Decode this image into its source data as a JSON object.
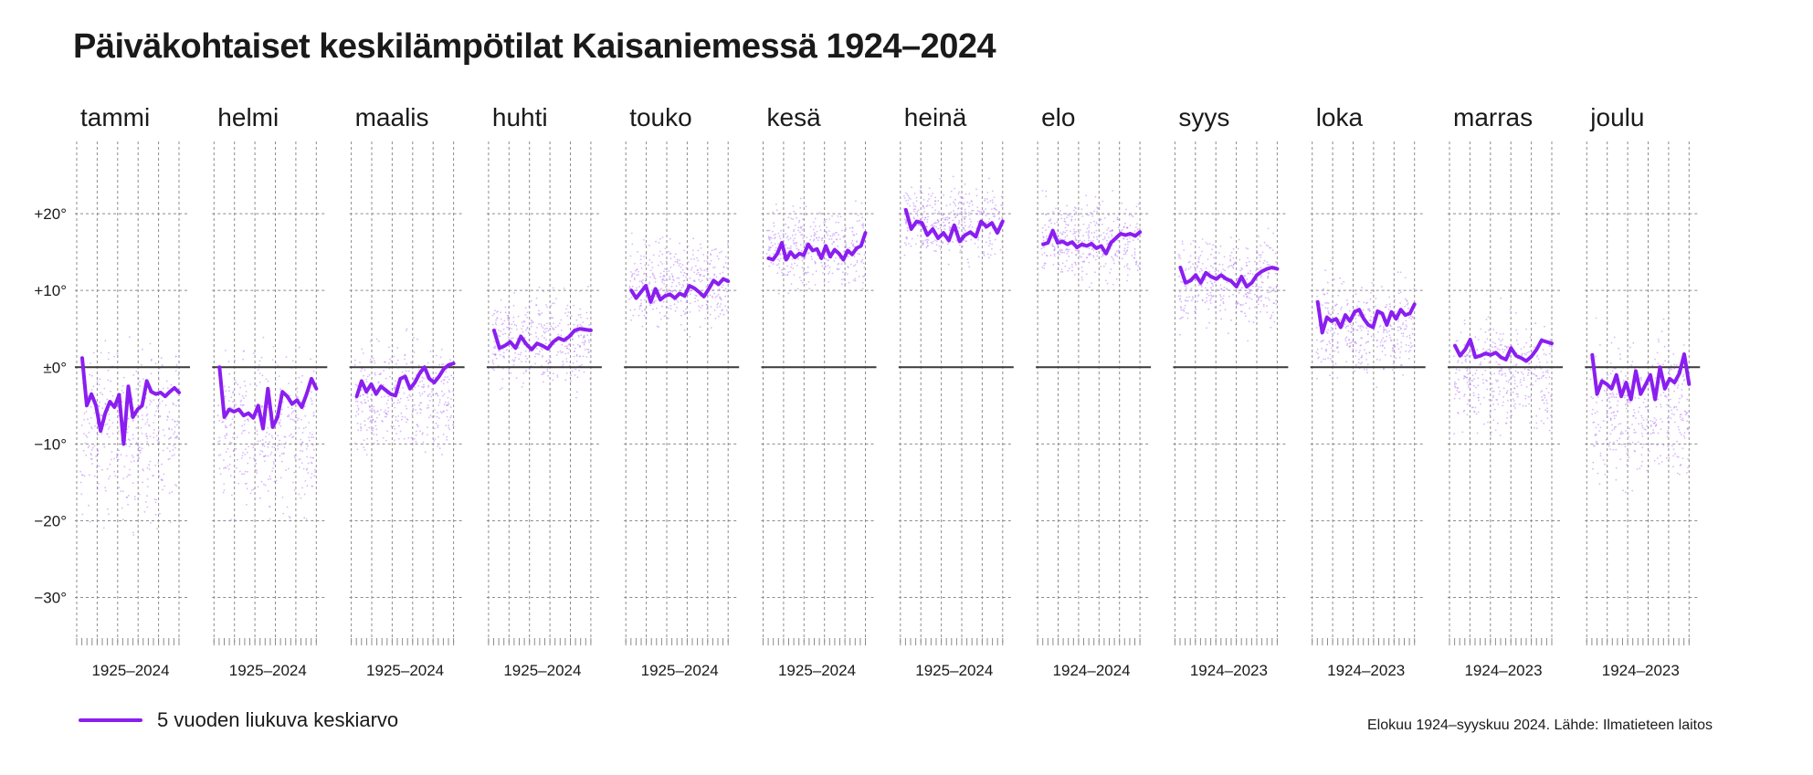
{
  "chart_data": {
    "type": "line",
    "title": "Päiväkohtaiset keskilämpötilat Kaisaniemessä 1924–2024",
    "ylim": [
      -36,
      30
    ],
    "yticks": [
      20,
      10,
      0,
      -10,
      -20,
      -30
    ],
    "ytick_labels": [
      "+20°",
      "+10°",
      "±0°",
      "−10°",
      "−20°",
      "−30°"
    ],
    "zero_line": 0,
    "series_name": "5 vuoden liukuva keskiarvo",
    "source": "Elokuu 1924–syyskuu 2024. Lähde: Ilmatieteen laitos",
    "line_color": "#8a1ef0",
    "dot_color": "#b77ef5",
    "months": [
      {
        "name": "tammi",
        "period": "1925–2024",
        "spread": [
          -22,
          5
        ],
        "avg": [
          1.2,
          -5.0,
          -3.5,
          -5.0,
          -8.3,
          -6.0,
          -4.5,
          -5.2,
          -3.6,
          -10.0,
          -2.5,
          -6.5,
          -5.5,
          -5.0,
          -1.8,
          -3.2,
          -3.5,
          -3.3,
          -3.8,
          -3.2,
          -2.7,
          -3.3
        ]
      },
      {
        "name": "helmi",
        "period": "1925–2024",
        "spread": [
          -22,
          4
        ],
        "avg": [
          0.0,
          -6.5,
          -5.5,
          -5.8,
          -5.5,
          -6.3,
          -6.0,
          -6.6,
          -5.0,
          -8.0,
          -2.8,
          -7.8,
          -6.5,
          -3.2,
          -3.8,
          -4.8,
          -4.3,
          -5.2,
          -3.5,
          -1.5,
          -2.8
        ]
      },
      {
        "name": "maalis",
        "period": "1925–2024",
        "spread": [
          -13,
          5
        ],
        "avg": [
          -3.8,
          -1.8,
          -3.2,
          -2.2,
          -3.5,
          -2.5,
          -3.0,
          -3.5,
          -3.7,
          -1.5,
          -1.2,
          -2.8,
          -2.0,
          -0.8,
          0.0,
          -1.5,
          -2.0,
          -1.2,
          -0.2,
          0.3,
          0.5
        ]
      },
      {
        "name": "huhti",
        "period": "1925–2024",
        "spread": [
          -4,
          11
        ],
        "avg": [
          4.8,
          2.5,
          2.8,
          3.3,
          2.5,
          4.0,
          3.0,
          2.3,
          3.1,
          2.8,
          2.4,
          3.3,
          3.8,
          3.5,
          4.0,
          4.8,
          5.0,
          4.9,
          4.8
        ]
      },
      {
        "name": "touko",
        "period": "1925–2024",
        "spread": [
          4,
          18
        ],
        "avg": [
          10.0,
          9.0,
          9.8,
          10.6,
          8.5,
          10.2,
          8.8,
          9.3,
          9.5,
          9.0,
          9.6,
          9.3,
          10.6,
          10.3,
          9.8,
          9.2,
          10.2,
          11.3,
          10.8,
          11.5,
          11.2
        ]
      },
      {
        "name": "kesä",
        "period": "1925–2024",
        "spread": [
          9,
          22
        ],
        "avg": [
          14.2,
          14.0,
          14.8,
          16.2,
          14.0,
          15.0,
          14.3,
          14.8,
          14.6,
          16.0,
          15.2,
          15.4,
          14.2,
          15.8,
          14.4,
          15.3,
          14.8,
          14.0,
          15.2,
          14.7,
          15.5,
          15.8,
          17.5
        ]
      },
      {
        "name": "heinä",
        "period": "1925–2024",
        "spread": [
          13,
          25
        ],
        "avg": [
          20.5,
          18.0,
          19.0,
          18.8,
          17.2,
          18.0,
          16.8,
          17.5,
          16.5,
          18.5,
          16.4,
          17.2,
          17.6,
          17.0,
          19.0,
          18.3,
          18.8,
          17.5,
          19.0
        ]
      },
      {
        "name": "elo",
        "period": "1924–2024",
        "spread": [
          10,
          23
        ],
        "avg": [
          16.0,
          16.2,
          17.8,
          16.2,
          16.4,
          16.0,
          16.3,
          15.6,
          16.0,
          15.8,
          16.1,
          15.5,
          15.8,
          14.8,
          16.2,
          16.8,
          17.4,
          17.2,
          17.4,
          17.1,
          17.6
        ]
      },
      {
        "name": "syys",
        "period": "1924–2023",
        "spread": [
          4,
          18
        ],
        "avg": [
          13.0,
          11.0,
          11.3,
          12.0,
          11.0,
          12.3,
          11.8,
          11.5,
          12.0,
          11.5,
          11.2,
          10.5,
          11.8,
          10.5,
          11.0,
          12.0,
          12.5,
          12.8,
          13.0,
          12.8
        ]
      },
      {
        "name": "loka",
        "period": "1924–2023",
        "spread": [
          -3,
          13
        ],
        "avg": [
          8.5,
          4.5,
          6.5,
          6.0,
          6.3,
          5.2,
          6.8,
          6.0,
          7.2,
          7.5,
          6.3,
          5.5,
          5.2,
          7.3,
          7.0,
          5.5,
          7.2,
          6.3,
          7.5,
          6.8,
          7.0,
          8.2
        ]
      },
      {
        "name": "marras",
        "period": "1924–2023",
        "spread": [
          -10,
          8
        ],
        "avg": [
          2.8,
          1.5,
          2.3,
          3.6,
          1.3,
          1.5,
          1.8,
          1.6,
          1.9,
          1.3,
          1.0,
          2.5,
          1.5,
          1.2,
          0.8,
          1.4,
          2.3,
          3.5,
          3.3,
          3.1
        ]
      },
      {
        "name": "joulu",
        "period": "1924–2023",
        "spread": [
          -17,
          6
        ],
        "avg": [
          1.6,
          -3.5,
          -1.8,
          -2.2,
          -2.8,
          -1.0,
          -3.8,
          -2.0,
          -4.2,
          -0.5,
          -3.5,
          -2.3,
          -1.0,
          -4.2,
          0.0,
          -2.8,
          -1.5,
          -2.0,
          -0.8,
          1.7,
          -2.2
        ]
      }
    ]
  }
}
